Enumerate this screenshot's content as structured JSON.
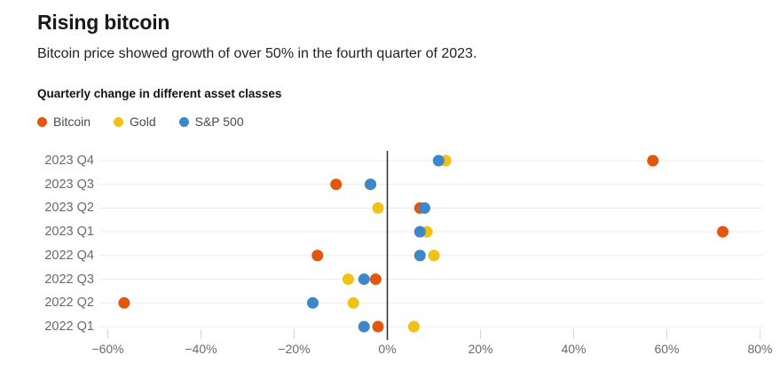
{
  "header": {
    "title": "Rising bitcoin",
    "subtitle": "Bitcoin price showed growth of over 50% in the fourth quarter of 2023."
  },
  "chart_data": {
    "type": "scatter",
    "title": "Quarterly change in different asset classes",
    "categories": [
      "2023 Q4",
      "2023 Q3",
      "2023 Q2",
      "2023 Q1",
      "2022 Q4",
      "2022 Q3",
      "2022 Q2",
      "2022 Q1"
    ],
    "unit": "%",
    "xlim": [
      -68,
      81
    ],
    "x_tick_labels": [
      "−60%",
      "−40%",
      "−20%",
      "0%",
      "20%",
      "40%",
      "60%",
      "80%"
    ],
    "x_tick_values": [
      -60,
      -40,
      -20,
      0,
      20,
      40,
      60,
      80
    ],
    "grid": "horizontal",
    "zero_line": true,
    "legend_position": "top-left",
    "series": [
      {
        "name": "Bitcoin",
        "color": "#e2560d",
        "values": [
          57,
          -11,
          7,
          72,
          -15,
          -2.5,
          -56.5,
          -2
        ]
      },
      {
        "name": "Gold",
        "color": "#f2c117",
        "values": [
          12.5,
          -3.7,
          -2,
          8.5,
          10,
          -8.4,
          -7.3,
          5.7
        ]
      },
      {
        "name": "S&P 500",
        "color": "#3d87c8",
        "values": [
          11,
          -3.6,
          8,
          7,
          7,
          -5,
          -16,
          -5
        ]
      }
    ]
  },
  "colors": {
    "grid": "#ececec",
    "zero_line": "#2b2b2b",
    "tick": "#d8d8d8"
  }
}
